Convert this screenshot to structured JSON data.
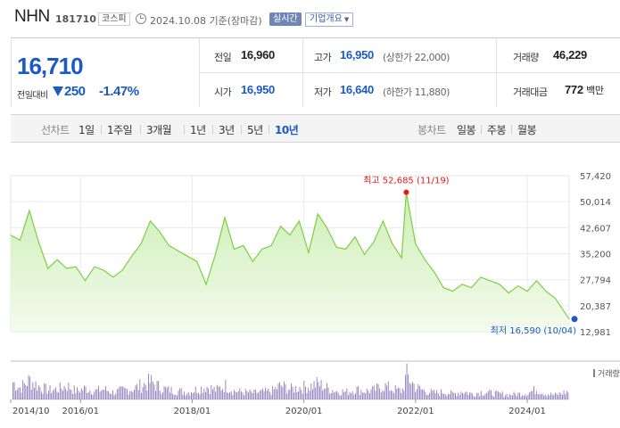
{
  "header": {
    "name": "NHN",
    "code": "181710",
    "market": "코스피",
    "date": "2024.10.08 기준(장마감)",
    "realtime_label": "실시간",
    "corp_label": "기업개요"
  },
  "price": {
    "now": "16,710",
    "change_label": "전일대비",
    "change": "250",
    "change_pct": "-1.47%"
  },
  "quote": {
    "prev_label": "전일",
    "prev_value": "16,960",
    "high_label": "고가",
    "high_value": "16,950",
    "high_limit": "(상한가 22,000)",
    "volume_label": "거래량",
    "volume_value": "46,229",
    "open_label": "시가",
    "open_value": "16,950",
    "low_label": "저가",
    "low_value": "16,640",
    "low_limit": "(하한가 11,880)",
    "amount_label": "거래대금",
    "amount_value": "772",
    "amount_unit": "백만"
  },
  "tabs": {
    "line_group": "선차트",
    "line_items": [
      "1일",
      "1주일",
      "3개월",
      "1년",
      "3년",
      "5년",
      "10년"
    ],
    "active_line": "10년",
    "candle_group": "봉차트",
    "candle_items": [
      "일봉",
      "주봉",
      "월봉"
    ]
  },
  "colors": {
    "accent_blue": "#1a59c6",
    "max_red": "#e8171a",
    "line_green": "#7bcf43",
    "fill_green_top": "#cdeeb5",
    "volume_purple": "#8a7bb8"
  },
  "chart_data": {
    "type": "area",
    "yticks": [
      57420,
      50014,
      42607,
      35200,
      27794,
      20387,
      12981
    ],
    "ytick_labels": [
      "57,420",
      "50,014",
      "42,607",
      "35,200",
      "27,794",
      "20,387",
      "12,981"
    ],
    "ylim": [
      12981,
      57420
    ],
    "xlim": [
      "2014-10",
      "2024-10"
    ],
    "xtick_labels": [
      "2014/10",
      "2016/01",
      "2018/01",
      "2020/01",
      "2022/01",
      "2024/01"
    ],
    "xtick_dates": [
      "2014-10",
      "2016-01",
      "2018-01",
      "2020-01",
      "2022-01",
      "2024-01"
    ],
    "max_label": "최고 52,685 (11/19)",
    "max_point": {
      "x": "2021-11",
      "y": 52685
    },
    "min_label": "최저 16,590 (10/04)",
    "min_point": {
      "x": "2024-10",
      "y": 16590
    },
    "volume_label": "거래량",
    "x": [
      "2014-10",
      "2014-12",
      "2015-02",
      "2015-04",
      "2015-06",
      "2015-08",
      "2015-10",
      "2015-12",
      "2016-02",
      "2016-04",
      "2016-06",
      "2016-08",
      "2016-10",
      "2016-12",
      "2017-02",
      "2017-04",
      "2017-06",
      "2017-08",
      "2017-10",
      "2017-12",
      "2018-02",
      "2018-04",
      "2018-06",
      "2018-08",
      "2018-10",
      "2018-12",
      "2019-02",
      "2019-04",
      "2019-06",
      "2019-08",
      "2019-10",
      "2019-12",
      "2020-02",
      "2020-04",
      "2020-06",
      "2020-08",
      "2020-10",
      "2020-12",
      "2021-02",
      "2021-04",
      "2021-06",
      "2021-08",
      "2021-10",
      "2021-11",
      "2022-01",
      "2022-03",
      "2022-05",
      "2022-07",
      "2022-09",
      "2022-11",
      "2023-01",
      "2023-03",
      "2023-05",
      "2023-07",
      "2023-09",
      "2023-11",
      "2024-01",
      "2024-03",
      "2024-05",
      "2024-07",
      "2024-10"
    ],
    "series": [
      {
        "values": [
          40500,
          39000,
          47500,
          38500,
          31000,
          33500,
          31000,
          31500,
          27500,
          31500,
          30500,
          28500,
          30500,
          34500,
          38000,
          44500,
          41500,
          37500,
          36000,
          34500,
          33000,
          26500,
          35000,
          45500,
          36500,
          37500,
          33000,
          36500,
          37500,
          43000,
          40500,
          44500,
          35500,
          46500,
          42500,
          37000,
          36500,
          40000,
          35000,
          38500,
          44500,
          38000,
          34000,
          52685,
          38000,
          33500,
          30000,
          25500,
          24500,
          26500,
          25500,
          28500,
          27500,
          26500,
          24000,
          26000,
          24500,
          27500,
          24500,
          22500,
          16590
        ],
        "volume": [
          40,
          25,
          42,
          28,
          20,
          22,
          30,
          18,
          24,
          18,
          22,
          15,
          20,
          22,
          30,
          38,
          26,
          20,
          18,
          16,
          22,
          28,
          20,
          30,
          18,
          16,
          14,
          16,
          18,
          30,
          22,
          26,
          28,
          34,
          24,
          18,
          16,
          22,
          18,
          20,
          30,
          22,
          18,
          52,
          26,
          18,
          14,
          16,
          12,
          18,
          12,
          16,
          14,
          12,
          10,
          12,
          14,
          22,
          12,
          10,
          18
        ]
      }
    ]
  }
}
